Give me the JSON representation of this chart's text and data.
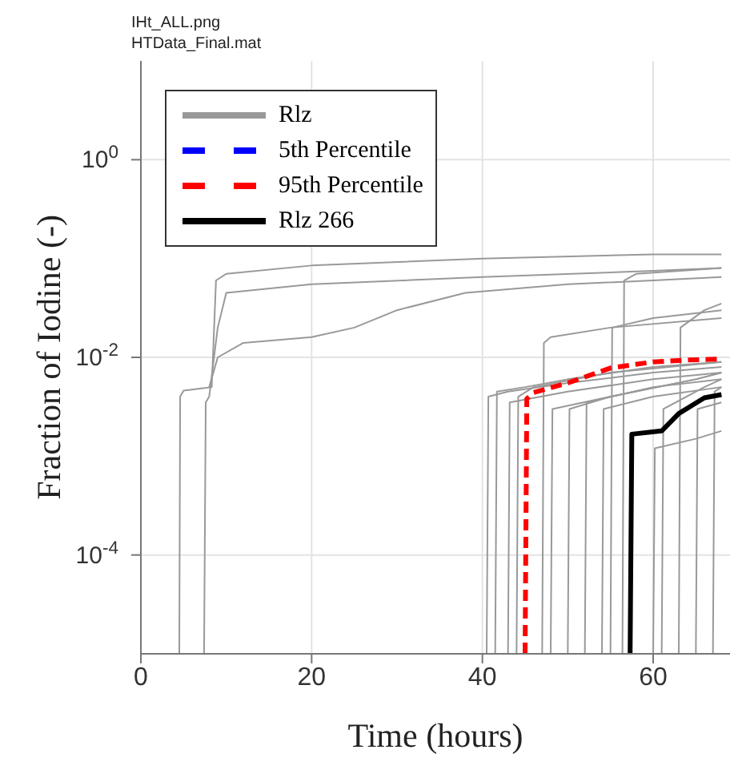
{
  "chart_data": {
    "type": "line",
    "title": "IHt_ALL.png",
    "subtitle": "HTData_Final.mat",
    "xlabel": "Time (hours)",
    "ylabel": "Fraction of Iodine (-)",
    "log": "y",
    "xlim": [
      0,
      69
    ],
    "xticks": [
      0,
      20,
      40,
      60
    ],
    "ylim": [
      1e-05,
      10
    ],
    "yticks": [
      {
        "value": 0.0001,
        "label": "10$^{-4}$"
      },
      {
        "value": 0.01,
        "label": "10$^{-2}$"
      },
      {
        "value": 1,
        "label": "10$^{0}$"
      }
    ],
    "grid": true,
    "legend": "top left",
    "series": [
      {
        "name": "Rlz",
        "color": "#999999",
        "x": [
          4.5,
          4.6,
          5,
          8.3,
          8.8,
          10,
          20,
          40,
          60,
          68
        ],
        "values": [
          1e-05,
          0.004,
          0.0046,
          0.005,
          0.06,
          0.07,
          0.085,
          0.1,
          0.11,
          0.11
        ]
      },
      {
        "color": "#999999",
        "x": [
          7.4,
          7.6,
          8,
          9,
          10,
          20,
          40,
          60,
          68
        ],
        "values": [
          1e-05,
          0.0035,
          0.004,
          0.02,
          0.045,
          0.055,
          0.065,
          0.075,
          0.08
        ]
      },
      {
        "color": "#999999",
        "x": [
          8,
          9,
          12,
          20,
          25,
          30,
          38,
          50,
          60,
          68
        ],
        "values": [
          0.005,
          0.01,
          0.014,
          0.016,
          0.02,
          0.03,
          0.045,
          0.055,
          0.06,
          0.065
        ]
      },
      {
        "color": "#999999",
        "x": [
          40.5,
          40.7,
          43,
          50,
          60,
          68
        ],
        "values": [
          1e-05,
          0.004,
          0.0045,
          0.0055,
          0.007,
          0.008
        ]
      },
      {
        "color": "#999999",
        "x": [
          41.5,
          41.7,
          45,
          50,
          60,
          68
        ],
        "values": [
          1e-05,
          0.0045,
          0.005,
          0.006,
          0.008,
          0.009
        ]
      },
      {
        "color": "#999999",
        "x": [
          43,
          43.2,
          50,
          60,
          68
        ],
        "values": [
          1e-05,
          0.0035,
          0.0045,
          0.006,
          0.007
        ]
      },
      {
        "color": "#999999",
        "x": [
          44,
          44.2,
          46,
          55,
          68
        ],
        "values": [
          1e-05,
          0.004,
          0.005,
          0.007,
          0.009
        ]
      },
      {
        "color": "#999999",
        "x": [
          47,
          47.2,
          48,
          55,
          68
        ],
        "values": [
          1e-05,
          0.014,
          0.016,
          0.02,
          0.025
        ]
      },
      {
        "color": "#999999",
        "x": [
          48,
          48.2,
          55,
          65,
          68
        ],
        "values": [
          1e-05,
          0.003,
          0.004,
          0.006,
          0.007
        ]
      },
      {
        "color": "#999999",
        "x": [
          50,
          50.2,
          55,
          65,
          68
        ],
        "values": [
          1e-05,
          0.003,
          0.004,
          0.006,
          0.007
        ]
      },
      {
        "color": "#999999",
        "x": [
          52,
          52.2,
          60,
          68
        ],
        "values": [
          1e-05,
          0.0035,
          0.005,
          0.006
        ]
      },
      {
        "color": "#999999",
        "x": [
          54,
          54.2,
          60,
          68
        ],
        "values": [
          1e-05,
          0.003,
          0.004,
          0.005
        ]
      },
      {
        "color": "#999999",
        "x": [
          55,
          55.2,
          60,
          68
        ],
        "values": [
          1e-05,
          0.02,
          0.025,
          0.03
        ]
      },
      {
        "color": "#999999",
        "x": [
          56.4,
          56.6,
          58,
          68
        ],
        "values": [
          1e-05,
          0.06,
          0.07,
          0.08
        ]
      },
      {
        "color": "#999999",
        "x": [
          60,
          60.2,
          65,
          68
        ],
        "values": [
          1e-05,
          0.0012,
          0.0015,
          0.0018
        ]
      },
      {
        "color": "#999999",
        "x": [
          61,
          61.2,
          66,
          68
        ],
        "values": [
          1e-05,
          0.003,
          0.005,
          0.006
        ]
      },
      {
        "color": "#999999",
        "x": [
          63,
          63.2,
          66,
          68
        ],
        "values": [
          1e-05,
          0.02,
          0.03,
          0.035
        ]
      },
      {
        "color": "#999999",
        "x": [
          65,
          65.2,
          68
        ],
        "values": [
          1e-05,
          0.003,
          0.0035
        ]
      },
      {
        "color": "#999999",
        "x": [
          67,
          67.2,
          68
        ],
        "values": [
          1e-05,
          0.0045,
          0.005
        ]
      },
      {
        "name": "5th Percentile",
        "color": "#0000ff",
        "line_style": "dashed"
      },
      {
        "name": "95th Percentile",
        "color": "#ff0000",
        "line_style": "dashed",
        "x": [
          45,
          45.2,
          46,
          50,
          55,
          60,
          64,
          68
        ],
        "values": [
          1e-05,
          0.0038,
          0.0044,
          0.0055,
          0.0078,
          0.009,
          0.0094,
          0.0096
        ]
      },
      {
        "name": "Rlz 266",
        "color": "#000000",
        "x": [
          57.3,
          57.5,
          61,
          63,
          66,
          68
        ],
        "values": [
          1e-05,
          0.00167,
          0.0018,
          0.0027,
          0.0039,
          0.0042
        ]
      }
    ]
  }
}
